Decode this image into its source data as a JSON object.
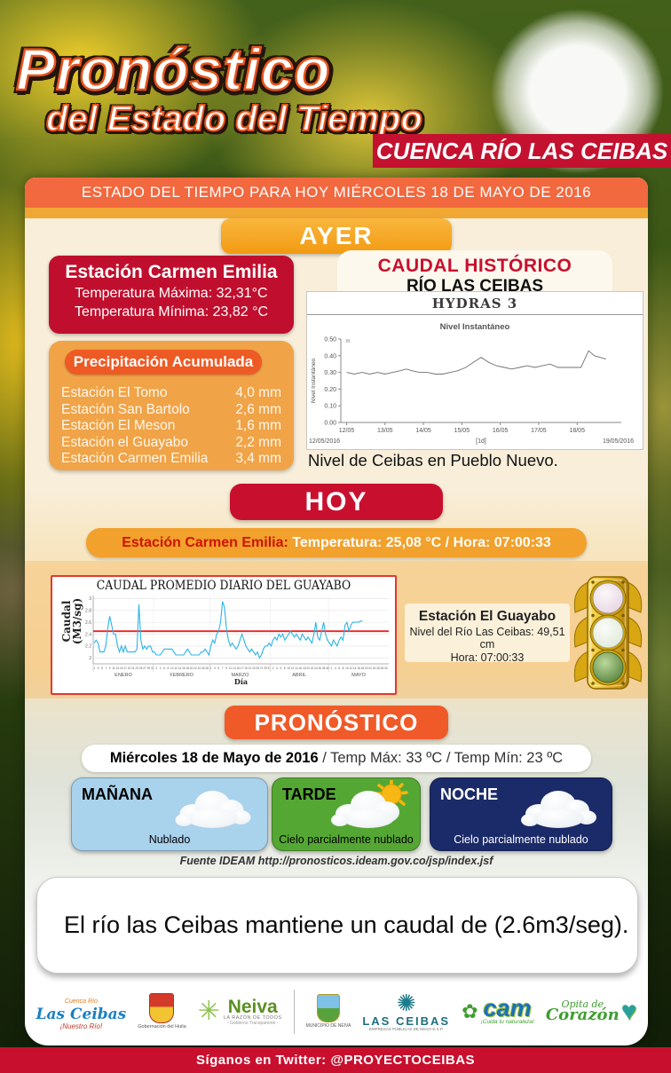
{
  "header": {
    "logo_line1": "Pronóstico",
    "logo_line2": "del Estado del Tiempo",
    "banner": "CUENCA RÍO LAS CEIBAS",
    "date_bar": "ESTADO DEL TIEMPO PARA HOY MIÉRCOLES 18 DE MAYO DE 2016"
  },
  "ayer": {
    "title": "AYER",
    "station_card": {
      "title": "Estación Carmen Emilia",
      "temp_max": "Temperatura Máxima: 32,31°C",
      "temp_min": "Temperatura Mínima: 23,82 °C"
    },
    "precipitacion": {
      "title": "Precipitación Acumulada",
      "rows": [
        {
          "label": "Estación El Tomo",
          "value": "4,0 mm"
        },
        {
          "label": "Estación San Bartolo",
          "value": "2,6 mm"
        },
        {
          "label": "Estación El Meson",
          "value": "1,6 mm"
        },
        {
          "label": "Estación el Guayabo",
          "value": "2,2 mm"
        },
        {
          "label": "Estación Carmen Emilia",
          "value": "3,4 mm"
        }
      ]
    },
    "caudal_historico": {
      "title_line1": "CAUDAL HISTÓRICO",
      "title_line2": "RÍO LAS CEIBAS",
      "caption": "Nivel de Ceibas en Pueblo Nuevo."
    }
  },
  "hoy": {
    "title": "HOY",
    "station_line": {
      "label": "Estación Carmen Emilia:",
      "value": " Temperatura: 25,08 °C / Hora: 07:00:33"
    },
    "guayabo_station": {
      "title": "Estación El Guayabo",
      "line1": "Nivel del Río Las Ceibas: 49,51 cm",
      "line2": "Hora: 07:00:33"
    },
    "traffic_light_states": [
      "off",
      "off",
      "green-on"
    ]
  },
  "pronostico": {
    "title": "PRONÓSTICO",
    "date_bold": "Miércoles 18 de Mayo de 2016",
    "date_rest": " / Temp Máx: 33 ºC / Temp Mín: 23 ºC",
    "cards": [
      {
        "period": "MAÑANA",
        "condition": "Nublado",
        "icon": "cloud",
        "bg": "#a9d2ec",
        "text_color": "#000000"
      },
      {
        "period": "TARDE",
        "condition": "Cielo parcialmente nublado",
        "icon": "sun-cloud",
        "bg": "#55a733",
        "text_color": "#000000"
      },
      {
        "period": "NOCHE",
        "condition": "Cielo parcialmente nublado",
        "icon": "cloud",
        "bg": "#1b2a68",
        "text_color": "#ffffff"
      }
    ],
    "fuente": "Fuente IDEAM  http://pronosticos.ideam.gov.co/jsp/index.jsf"
  },
  "message": "El río las Ceibas mantiene un caudal de (2.6m3/seg).",
  "footer": {
    "logos": [
      {
        "id": "cuenca-las-ceibas",
        "line1": "Cuenca Río",
        "line2": "Las Ceibas",
        "line3": "¡Nuestro Río!"
      },
      {
        "id": "gobernacion-huila",
        "caption": "Gobernación del Huila"
      },
      {
        "id": "neiva",
        "name": "Neiva",
        "tagline": "LA RAZÓN DE TODOS",
        "sub": "- Gobierno Transparente -"
      },
      {
        "id": "municipio-neiva",
        "caption": "MUNICIPIO DE NEIVA"
      },
      {
        "id": "las-ceibas-epn",
        "name": "LAS CEIBAS",
        "tagline": "EMPRESAS PÚBLICAS DE NEIVA E.S.P."
      },
      {
        "id": "cam",
        "name": "cam",
        "tagline": "¡Cuida tu naturaleza!"
      },
      {
        "id": "opita-de-corazon",
        "line1": "Opita de",
        "line2": "Corazón"
      }
    ],
    "twitter": "Síganos en Twitter: @PROYECTOCEIBAS"
  },
  "colors": {
    "crimson": "#c8102e",
    "orange_bar": "#f2683f",
    "gold": "#f1a733",
    "card_cream": "#f8eeda",
    "pill_orange": "#f2a12c",
    "pronostico_orange": "#f05a28",
    "manana_blue": "#a9d2ec",
    "tarde_green": "#55a733",
    "noche_navy": "#1b2a68",
    "chart_line_cyan": "#2ab4e8",
    "chart_threshold_red": "#ee2222"
  },
  "chart_data": [
    {
      "type": "line",
      "title": "HYDRAS 3",
      "subtitle": "Nivel Instantáneo",
      "ylabel": "Nivel Instantáneo",
      "unit": "m",
      "ylim": [
        0,
        0.5
      ],
      "yticks": [
        0,
        0.1,
        0.2,
        0.3,
        0.4,
        0.5
      ],
      "xtick_labels": [
        "12/05",
        "13/05",
        "14/05",
        "15/05",
        "16/05",
        "17/05",
        "18/05"
      ],
      "x_start_label": "12/05/2016",
      "x_axis_label": "[1d]",
      "x_end_label": "19/05/2016",
      "line_color": "#707070",
      "x": [
        12.0,
        12.2,
        12.4,
        12.6,
        12.8,
        13.0,
        13.2,
        13.4,
        13.55,
        13.7,
        13.9,
        14.1,
        14.3,
        14.5,
        14.7,
        14.9,
        15.1,
        15.3,
        15.5,
        15.7,
        15.9,
        16.1,
        16.3,
        16.5,
        16.7,
        16.9,
        17.1,
        17.3,
        17.5,
        17.7,
        17.9,
        18.1,
        18.3,
        18.45,
        18.6,
        18.75
      ],
      "y": [
        0.3,
        0.29,
        0.3,
        0.29,
        0.3,
        0.29,
        0.3,
        0.31,
        0.32,
        0.31,
        0.3,
        0.3,
        0.29,
        0.29,
        0.3,
        0.31,
        0.33,
        0.36,
        0.39,
        0.36,
        0.34,
        0.33,
        0.32,
        0.33,
        0.34,
        0.33,
        0.34,
        0.35,
        0.33,
        0.33,
        0.33,
        0.33,
        0.43,
        0.4,
        0.39,
        0.38
      ]
    },
    {
      "type": "line",
      "title": "CAUDAL PROMEDIO DIARIO DEL GUAYABO",
      "ylabel": "Caudal (M3/sg)",
      "xlabel": "Día",
      "ylim": [
        1.9,
        3.05
      ],
      "yticks": [
        2,
        2.2,
        2.4,
        2.6,
        2.8,
        3
      ],
      "line_color": "#2ab4e8",
      "threshold": 2.45,
      "threshold_color": "#ee2222",
      "months": [
        {
          "name": "ENERO",
          "days": 31,
          "tick_start": 1
        },
        {
          "name": "FEBRERO",
          "days": 29,
          "tick_start": 2
        },
        {
          "name": "MARZO",
          "days": 31,
          "tick_start": 1
        },
        {
          "name": "ABRIL",
          "days": 30,
          "tick_start": 2
        },
        {
          "name": "MAYO",
          "days": 31,
          "tick_start": 2
        }
      ],
      "values": [
        2.25,
        2.3,
        2.25,
        2.1,
        2.1,
        2.1,
        2.2,
        2.5,
        2.7,
        2.55,
        2.4,
        2.4,
        2.2,
        2.1,
        2.2,
        2.1,
        2.2,
        2.1,
        2.1,
        2.1,
        2.1,
        2.1,
        2.15,
        2.9,
        2.3,
        2.15,
        2.2,
        2.15,
        2.2,
        2.2,
        2.1,
        2.1,
        2.05,
        2.05,
        2.05,
        2.1,
        2.15,
        2.15,
        2.15,
        2.15,
        2.15,
        2.1,
        2.05,
        2.05,
        2.05,
        2.05,
        2.05,
        2.1,
        2.15,
        2.1,
        2.05,
        2.05,
        2.05,
        2.05,
        2.05,
        2.1,
        2.1,
        2.15,
        2.1,
        2.05,
        2.2,
        2.3,
        2.25,
        2.4,
        2.45,
        2.6,
        2.95,
        2.85,
        2.5,
        2.3,
        2.2,
        2.25,
        2.2,
        2.15,
        2.2,
        2.3,
        2.4,
        2.3,
        2.2,
        2.15,
        2.1,
        2.15,
        2.1,
        2.05,
        2.1,
        2.0,
        2.05,
        2.15,
        2.2,
        2.2,
        2.25,
        2.2,
        2.3,
        2.35,
        2.3,
        2.4,
        2.35,
        2.4,
        2.3,
        2.35,
        2.4,
        2.45,
        2.4,
        2.35,
        2.4,
        2.35,
        2.3,
        2.4,
        2.35,
        2.3,
        2.35,
        2.3,
        2.25,
        2.4,
        2.6,
        2.35,
        2.3,
        2.45,
        2.6,
        2.4,
        2.3,
        2.25,
        2.2,
        2.3,
        2.25,
        2.2,
        2.3,
        2.35,
        2.3,
        2.55,
        2.6,
        2.45,
        2.55,
        2.6,
        2.6,
        2.6,
        2.6,
        2.62,
        2.62
      ]
    }
  ]
}
